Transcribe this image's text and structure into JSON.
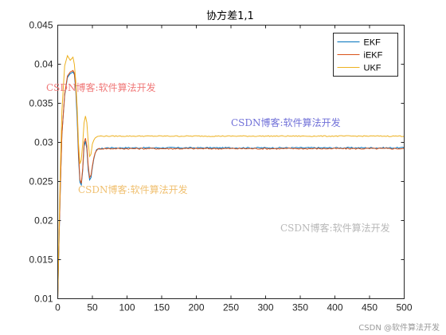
{
  "chart_data": {
    "type": "line",
    "title": "协方差1,1",
    "xlim": [
      0,
      500
    ],
    "ylim": [
      0.01,
      0.045
    ],
    "xticks": [
      0,
      50,
      100,
      150,
      200,
      250,
      300,
      350,
      400,
      450,
      500
    ],
    "yticks": [
      0.01,
      0.015,
      0.02,
      0.025,
      0.03,
      0.035,
      0.04,
      0.045
    ],
    "xtick_labels": [
      "0",
      "50",
      "100",
      "150",
      "200",
      "250",
      "300",
      "350",
      "400",
      "450",
      "500"
    ],
    "ytick_labels": [
      "0.01",
      "0.015",
      "0.02",
      "0.025",
      "0.03",
      "0.035",
      "0.04",
      "0.045"
    ],
    "legend_position": "top-right",
    "grid": false,
    "series": [
      {
        "name": "EKF",
        "color": "#0072BD",
        "x": [
          0,
          3,
          6,
          10,
          14,
          18,
          22,
          25,
          28,
          31,
          33,
          35,
          38,
          41,
          44,
          46,
          48,
          50,
          53,
          56,
          60,
          65,
          70,
          80,
          90,
          100,
          500
        ],
        "y": [
          0.01,
          0.022,
          0.031,
          0.036,
          0.0383,
          0.0388,
          0.039,
          0.0385,
          0.033,
          0.0255,
          0.0243,
          0.0248,
          0.0295,
          0.0305,
          0.0265,
          0.0252,
          0.0255,
          0.0268,
          0.0284,
          0.029,
          0.0292,
          0.0292,
          0.0293,
          0.0293,
          0.0293,
          0.0293,
          0.0293
        ],
        "noise": 8e-05
      },
      {
        "name": "iEKF",
        "color": "#D95319",
        "x": [
          0,
          3,
          6,
          10,
          14,
          18,
          22,
          25,
          28,
          31,
          33,
          35,
          38,
          41,
          44,
          46,
          48,
          50,
          53,
          56,
          60,
          65,
          70,
          80,
          90,
          100,
          500
        ],
        "y": [
          0.01,
          0.022,
          0.031,
          0.0362,
          0.0385,
          0.039,
          0.0392,
          0.0387,
          0.034,
          0.026,
          0.0245,
          0.025,
          0.03,
          0.0308,
          0.027,
          0.0255,
          0.0258,
          0.027,
          0.0285,
          0.029,
          0.0292,
          0.0292,
          0.0292,
          0.0292,
          0.0292,
          0.0292,
          0.0292
        ],
        "noise": 9e-05
      },
      {
        "name": "UKF",
        "color": "#EDB120",
        "x": [
          0,
          3,
          6,
          10,
          14,
          18,
          22,
          25,
          28,
          31,
          33,
          35,
          38,
          41,
          44,
          46,
          48,
          50,
          53,
          56,
          60,
          65,
          70,
          80,
          90,
          100,
          500
        ],
        "y": [
          0.01,
          0.024,
          0.034,
          0.0398,
          0.0411,
          0.0405,
          0.0409,
          0.0395,
          0.0345,
          0.0275,
          0.027,
          0.0285,
          0.0325,
          0.0338,
          0.03,
          0.0282,
          0.0285,
          0.0298,
          0.0305,
          0.0307,
          0.0308,
          0.0308,
          0.0308,
          0.0308,
          0.0308,
          0.0308,
          0.0308
        ],
        "noise": 6e-05
      }
    ]
  },
  "watermarks": [
    {
      "text": "CSDN博客:软件算法开发",
      "color": "#f07878"
    },
    {
      "text": "CSDN博客:软件算法开发",
      "color": "#7070d8"
    },
    {
      "text": "CSDN博客:软件算法开发",
      "color": "#f0c070"
    },
    {
      "text": "CSDN博客:软件算法开发",
      "color": "#b8b8b8"
    }
  ],
  "footer_watermark": "CSDN @软件算法开发"
}
